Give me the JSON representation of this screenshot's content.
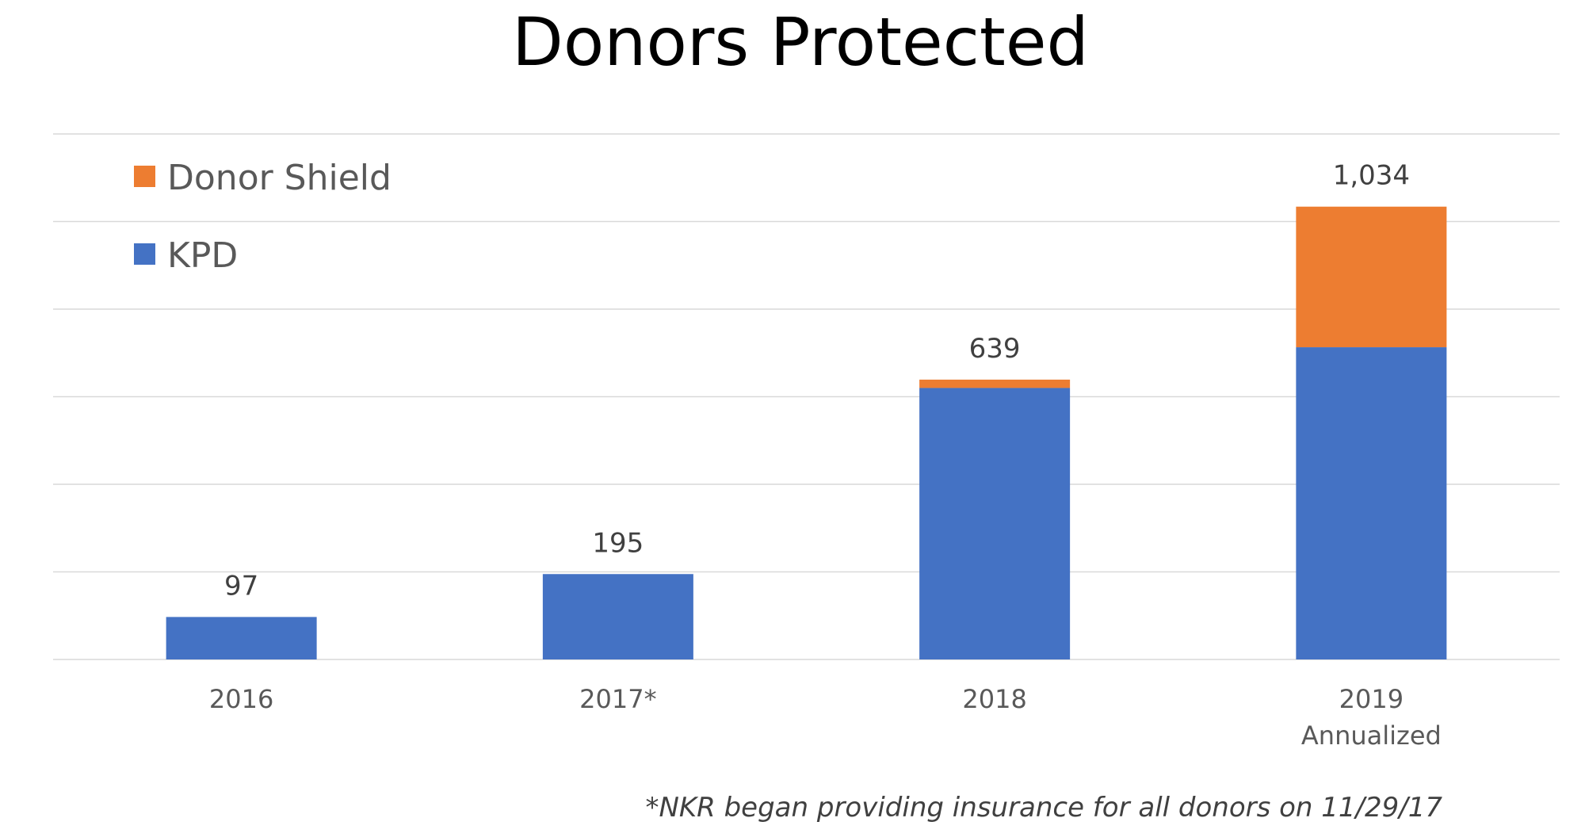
{
  "chart_data": {
    "type": "bar",
    "stacked": true,
    "title": "Donors Protected",
    "categories": [
      "2016",
      "2017*",
      "2018",
      "2019\nAnnualized"
    ],
    "series": [
      {
        "name": "KPD",
        "color": "#4472C4",
        "values": [
          97,
          195,
          620,
          713
        ]
      },
      {
        "name": "Donor Shield",
        "color": "#ED7D31",
        "values": [
          0,
          0,
          19,
          321
        ]
      }
    ],
    "totals": [
      "97",
      "195",
      "639",
      "1,034"
    ],
    "ylim": [
      0,
      1200
    ],
    "grid": true,
    "legend_position": "top-left",
    "xlabel": "",
    "ylabel": ""
  },
  "footnote": "*NKR began providing insurance for all donors on 11/29/17"
}
